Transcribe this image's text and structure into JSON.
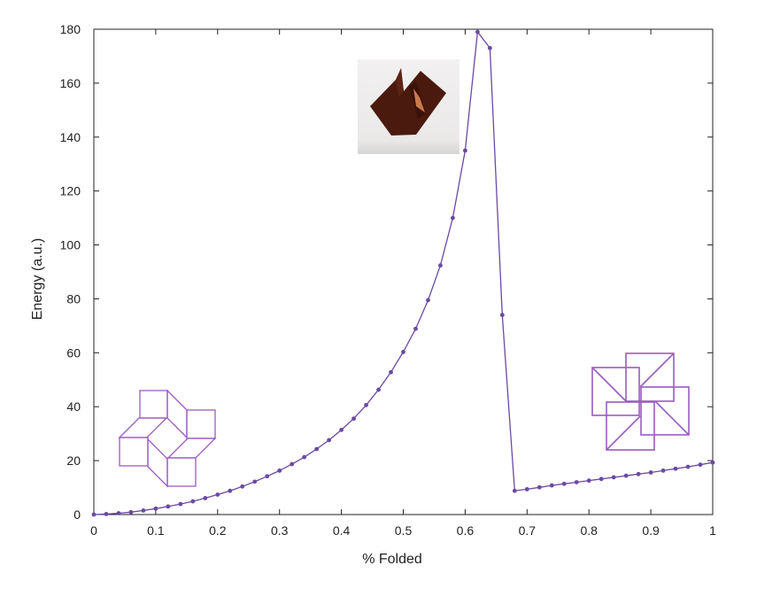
{
  "chart_data": {
    "type": "line",
    "title": "",
    "xlabel": "% Folded",
    "ylabel": "Energy (a.u.)",
    "xlim": [
      0,
      1
    ],
    "ylim": [
      0,
      180
    ],
    "x_ticks": [
      "0",
      "0.1",
      "0.2",
      "0.3",
      "0.4",
      "0.5",
      "0.6",
      "0.7",
      "0.8",
      "0.9",
      "1"
    ],
    "y_ticks": [
      "0",
      "20",
      "40",
      "60",
      "80",
      "100",
      "120",
      "140",
      "160",
      "180"
    ],
    "grid": false,
    "series_color": "#6a4aa3",
    "series": [
      {
        "name": "",
        "x": [
          0,
          0.02,
          0.04,
          0.06,
          0.08,
          0.1,
          0.12,
          0.14,
          0.16,
          0.18,
          0.2,
          0.22,
          0.24,
          0.26,
          0.28,
          0.3,
          0.32,
          0.34,
          0.36,
          0.38,
          0.4,
          0.42,
          0.44,
          0.46,
          0.48,
          0.5,
          0.52,
          0.54,
          0.56,
          0.58,
          0.6,
          0.62,
          0.64,
          0.66,
          0.68,
          0.7,
          0.72,
          0.74,
          0.76,
          0.78,
          0.8,
          0.82,
          0.84,
          0.86,
          0.88,
          0.9,
          0.92,
          0.94,
          0.96,
          0.98,
          1.0
        ],
        "values": [
          0,
          0.2,
          0.5,
          0.9,
          1.5,
          2.2,
          3.0,
          3.9,
          4.9,
          6.1,
          7.4,
          8.8,
          10.4,
          12.2,
          14.2,
          16.3,
          18.7,
          21.3,
          24.3,
          27.6,
          31.4,
          35.6,
          40.6,
          46.3,
          52.8,
          60.3,
          68.9,
          79.5,
          92.4,
          110.0,
          135.0,
          179.0,
          173.0,
          74.0,
          8.8,
          9.4,
          10.1,
          10.8,
          11.4,
          12.0,
          12.6,
          13.2,
          13.8,
          14.4,
          15.0,
          15.6,
          16.3,
          17.0,
          17.7,
          18.5,
          19.3
        ]
      }
    ],
    "insets": [
      {
        "name": "unfolded-pattern-icon",
        "position": "bottom-left",
        "color": "#9a5cc0"
      },
      {
        "name": "folded-model-photo",
        "position": "top-center",
        "color": "#4a1a0e"
      },
      {
        "name": "folded-pinwheel-icon",
        "position": "right",
        "color": "#9a5cc0"
      }
    ]
  }
}
